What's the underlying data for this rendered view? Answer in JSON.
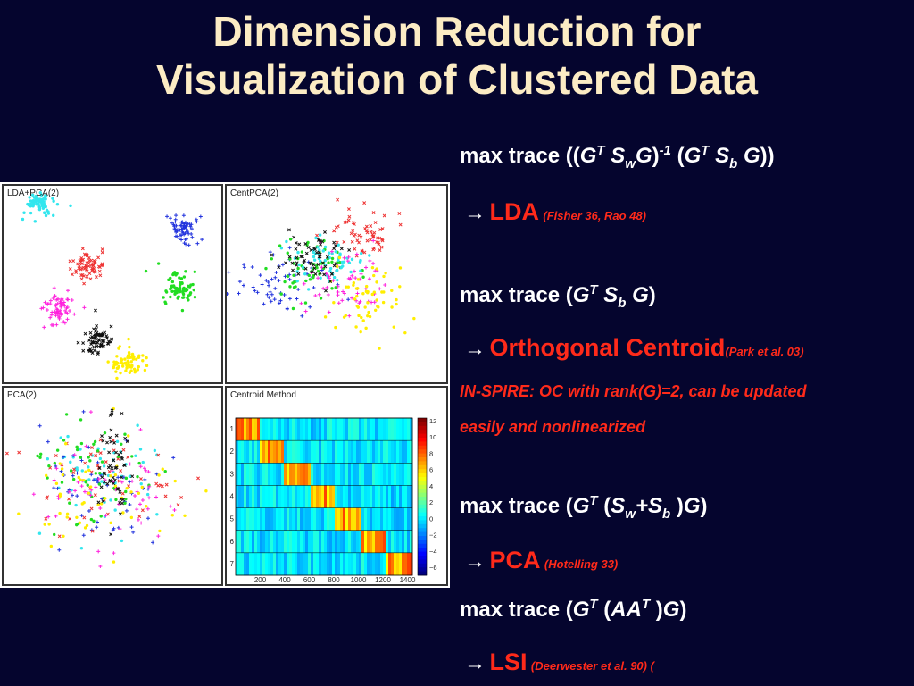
{
  "title_line1": "Dimension Reduction for",
  "title_line2": "Visualization of Clustered Data",
  "colors": {
    "background": "#05052e",
    "title": "#fcecc4",
    "accent": "#ff2a1a",
    "text": "#ffffff"
  },
  "arrow": "→",
  "formulas": {
    "lda": {
      "prefix": "max trace ((",
      "g": "G",
      "t": "T",
      "s": "S",
      "w": "w",
      "g2": "G",
      "close1": ")",
      "inv": "-1",
      "mid": " (",
      "g3": "G",
      "t2": "T",
      "s2": "S",
      "b": "b",
      "g4": "G",
      "close2": "))"
    },
    "oc": {
      "prefix": "max trace (",
      "g": "G",
      "t": "T",
      "s": "S",
      "b": "b",
      "g2": "G",
      "close": ")"
    },
    "pca": {
      "prefix": "max trace (",
      "g": "G",
      "t": "T",
      "open": " (",
      "s": "S",
      "w": "w",
      "plus": "+S",
      "b": "b",
      "close1": " )",
      "g2": "G",
      "close2": ")"
    },
    "lsi": {
      "prefix": "max trace (",
      "g": "G",
      "t": "T",
      "open": " (",
      "aa": "AA",
      "t2": "T",
      "close1": " )",
      "g2": "G",
      "close2": ")"
    }
  },
  "methods": {
    "lda": {
      "name": "LDA",
      "cite": "(Fisher  36, Rao 48)"
    },
    "oc": {
      "name": "Orthogonal Centroid",
      "cite": "(Park et al.  03)"
    },
    "pca": {
      "name": "PCA",
      "cite": "(Hotelling 33)"
    },
    "lsi": {
      "name": "LSI",
      "cite": "(Deerwester et al. 90) ("
    }
  },
  "note_line1": "IN-SPIRE: OC with rank(G)=2, can be updated",
  "note_line2": "easily and nonlinearized",
  "figure": {
    "panels": [
      {
        "label": "LDA+PCA(2)"
      },
      {
        "label": "CentPCA(2)"
      },
      {
        "label": "PCA(2)"
      },
      {
        "label": "Centroid Method"
      }
    ],
    "cluster_colors": [
      "#33e6ee",
      "#2233dd",
      "#ee3333",
      "#22dd22",
      "#ff22dd",
      "#111111",
      "#ffee00"
    ],
    "heatmap": {
      "y_ticks": [
        "1",
        "2",
        "3",
        "4",
        "5",
        "6",
        "7"
      ],
      "x_ticks": [
        "200",
        "400",
        "600",
        "800",
        "1000",
        "1200",
        "1400"
      ],
      "colorbar_ticks": [
        "12",
        "10",
        "8",
        "6",
        "4",
        "2",
        "0",
        "−2",
        "−4",
        "−6"
      ]
    }
  }
}
